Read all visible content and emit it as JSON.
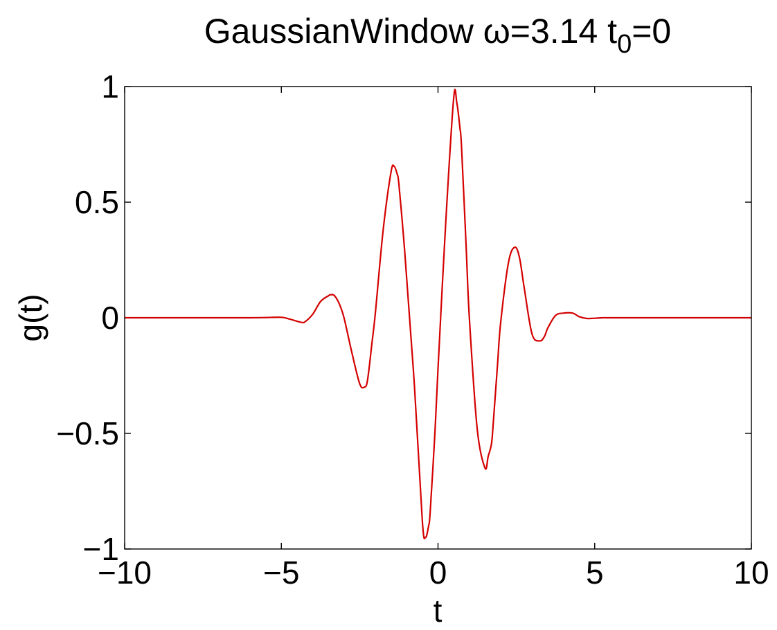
{
  "chart_data": {
    "type": "line",
    "title": {
      "main": "GaussianWindow ω=3.14 t",
      "sub": "0",
      "tail": "=0"
    },
    "xlabel": "t",
    "ylabel": "g(t)",
    "xlim": [
      -10,
      10
    ],
    "ylim": [
      -1,
      1
    ],
    "xticks": [
      -10,
      -5,
      0,
      5,
      10
    ],
    "xtick_labels": [
      "−10",
      "−5",
      "0",
      "5",
      "10"
    ],
    "yticks": [
      -1,
      -0.5,
      0,
      0.5,
      1
    ],
    "ytick_labels": [
      "−1",
      "−0.5",
      "0",
      "0.5",
      "1"
    ],
    "grid": false,
    "series": [
      {
        "color": "#d40000",
        "x": [
          -10,
          -9,
          -8,
          -7,
          -6,
          -5.5,
          -5,
          -4.75,
          -4.5,
          -4.35,
          -4.25,
          -4,
          -3.75,
          -3.5,
          -3.4,
          -3.3,
          -3.15,
          -3,
          -2.75,
          -2.5,
          -2.35,
          -2.25,
          -2.1,
          -2,
          -1.75,
          -1.5,
          -1.4,
          -1.3,
          -1.25,
          -1.1,
          -1,
          -0.75,
          -0.5,
          -0.4,
          -0.3,
          -0.25,
          -0.1,
          0,
          0.25,
          0.5,
          0.6,
          0.7,
          0.75,
          0.9,
          1,
          1.25,
          1.5,
          1.6,
          1.7,
          1.75,
          1.9,
          2,
          2.25,
          2.45,
          2.6,
          2.75,
          3,
          3.25,
          3.4,
          3.5,
          3.75,
          4,
          4.3,
          4.5,
          4.75,
          5,
          5.25,
          5.5,
          6,
          7,
          8,
          9,
          10
        ],
        "y": [
          0,
          0,
          0,
          0,
          0,
          0.001,
          0.002,
          -0.005,
          -0.015,
          -0.02,
          -0.018,
          0.015,
          0.07,
          0.095,
          0.1,
          0.095,
          0.06,
          0.0,
          -0.15,
          -0.285,
          -0.3,
          -0.27,
          -0.1,
          0.02,
          0.38,
          0.63,
          0.655,
          0.62,
          0.58,
          0.35,
          0.17,
          -0.3,
          -0.88,
          -0.95,
          -0.9,
          -0.84,
          -0.5,
          -0.22,
          0.42,
          0.95,
          0.93,
          0.82,
          0.74,
          0.3,
          0.0,
          -0.48,
          -0.65,
          -0.6,
          -0.55,
          -0.48,
          -0.2,
          -0.02,
          0.24,
          0.305,
          0.26,
          0.13,
          -0.07,
          -0.1,
          -0.08,
          -0.045,
          0.01,
          0.02,
          0.02,
          0.005,
          -0.003,
          -0.002,
          0,
          0,
          0,
          0,
          0,
          0,
          0
        ]
      }
    ]
  }
}
